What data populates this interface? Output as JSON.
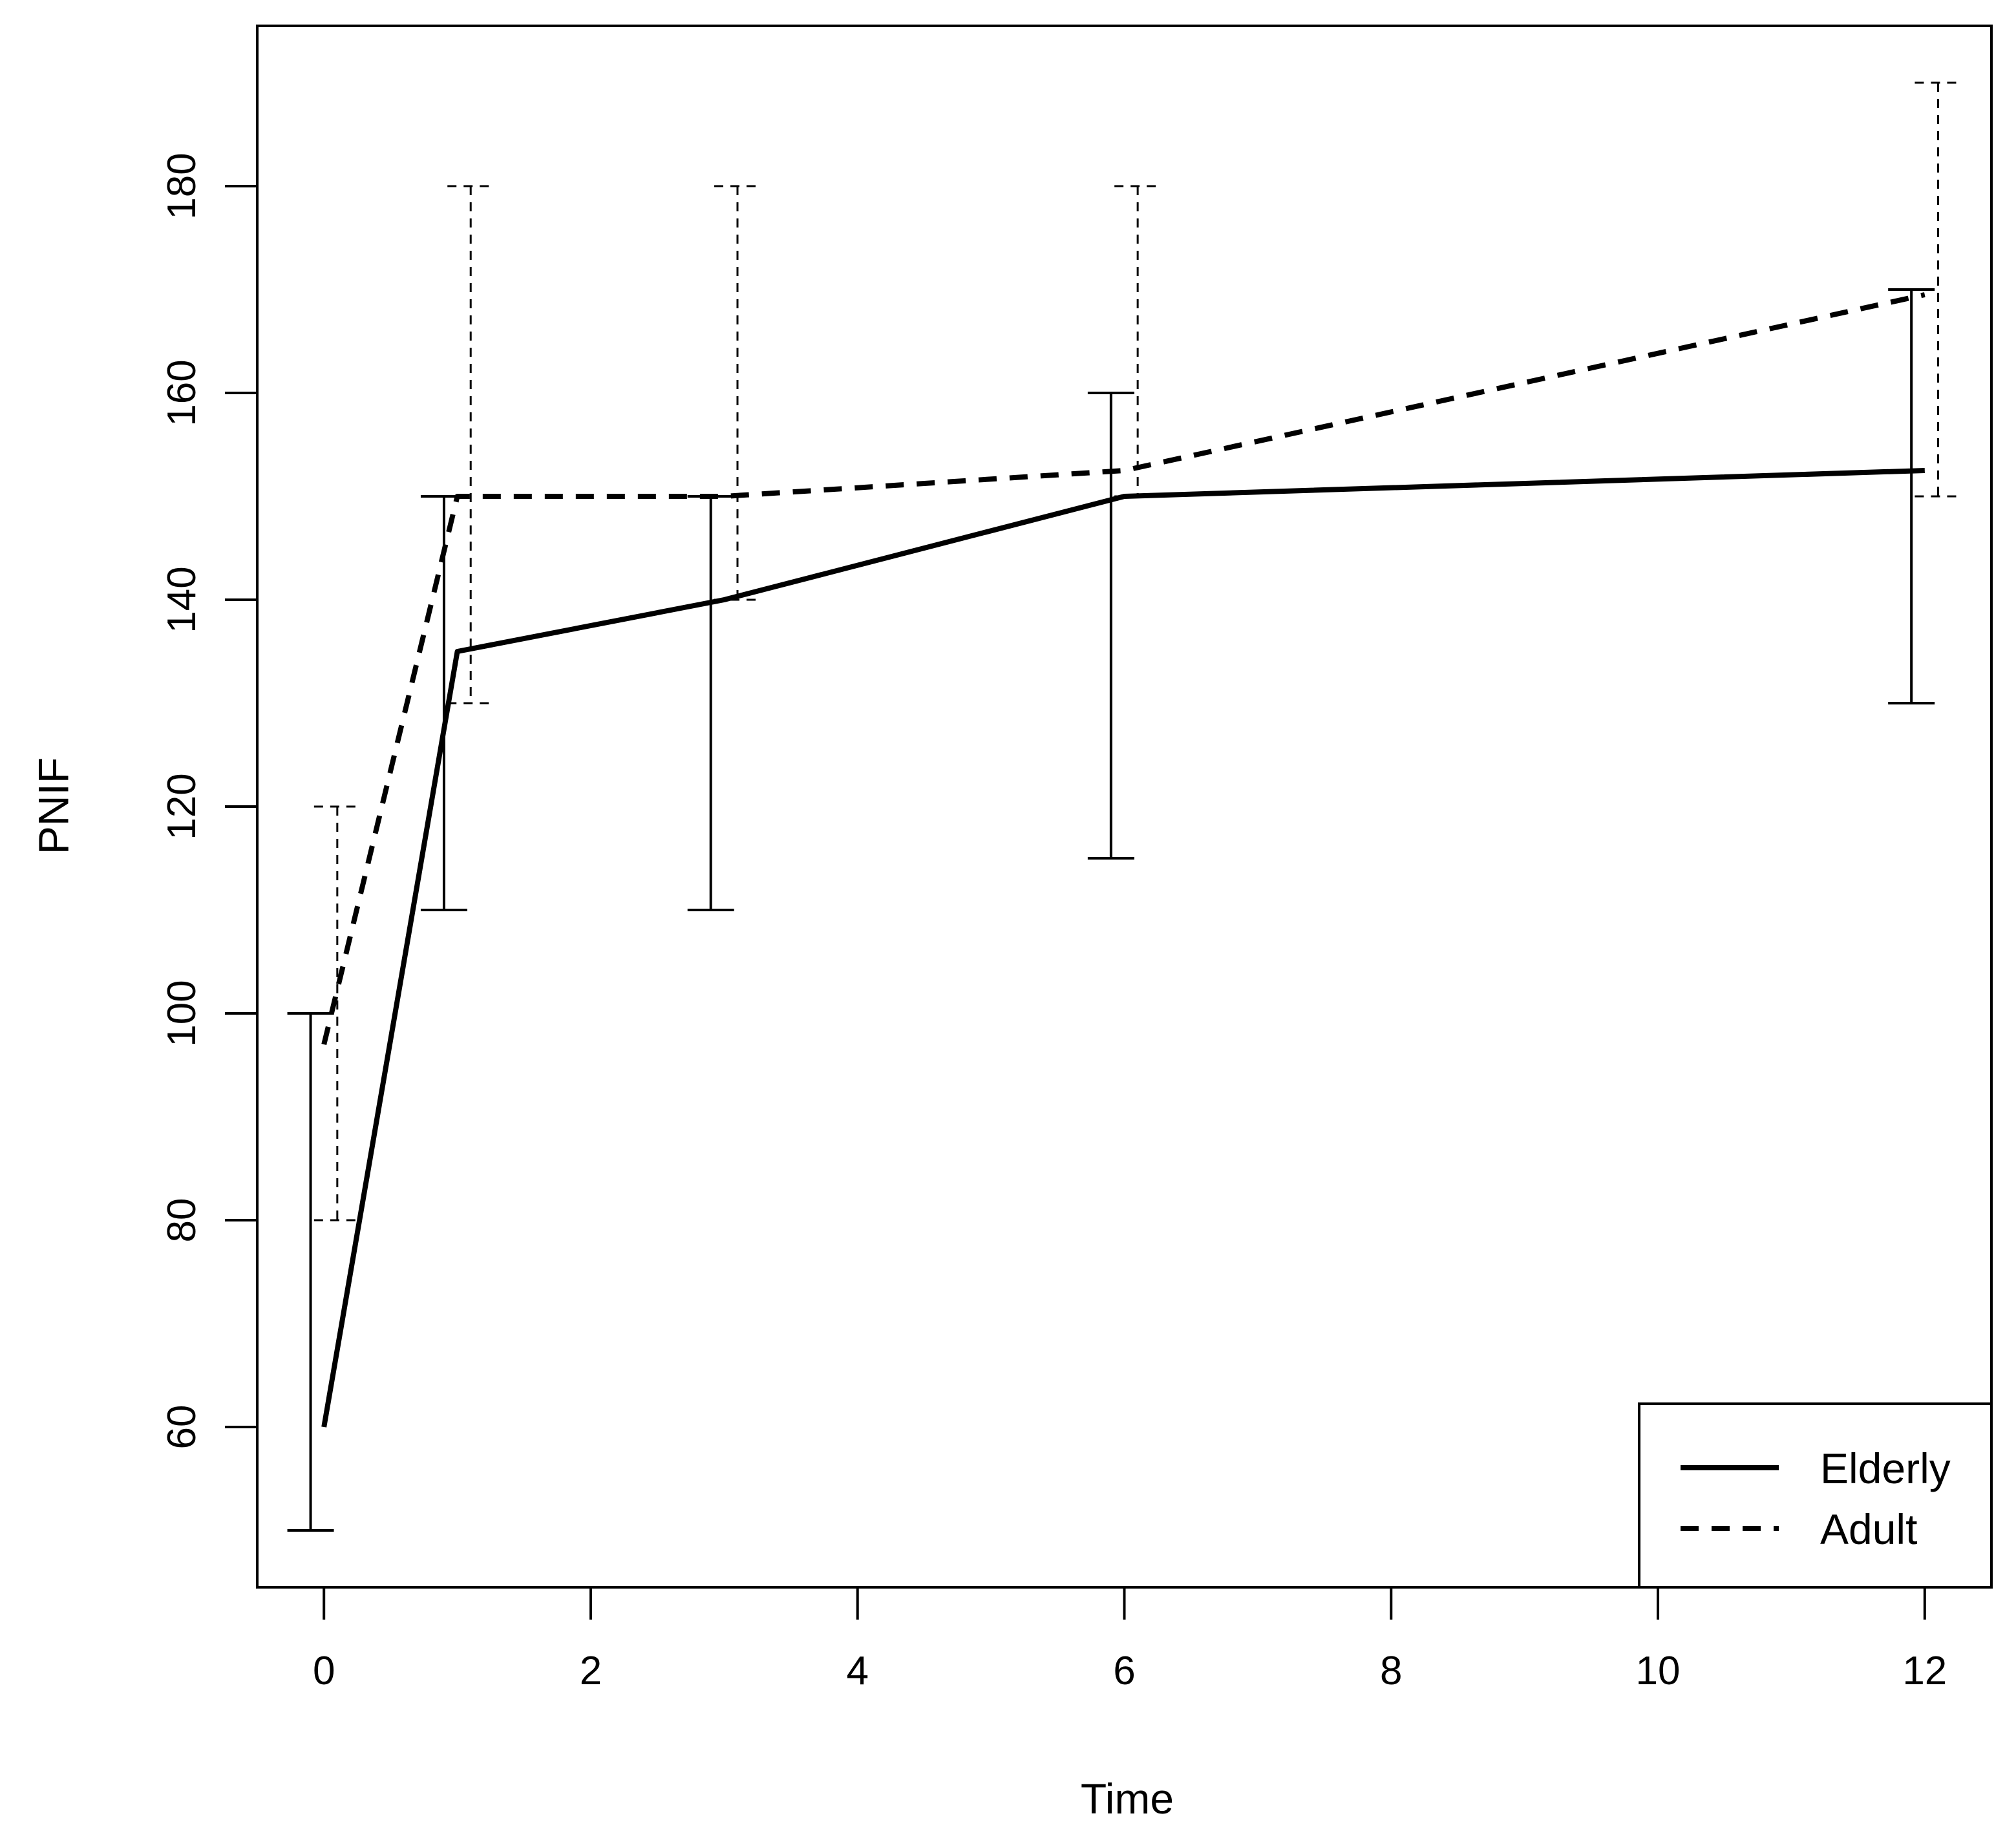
{
  "chart_data": {
    "type": "line",
    "title": "",
    "xlabel": "Time",
    "ylabel": "PNIF",
    "xlim": [
      -0.5,
      12.5
    ],
    "ylim": [
      44.5,
      195.5
    ],
    "xticks": [
      0,
      2,
      4,
      6,
      8,
      10,
      12
    ],
    "yticks": [
      60,
      80,
      100,
      120,
      140,
      160,
      180
    ],
    "grid": false,
    "legend_position": "bottom-right",
    "series": [
      {
        "name": "Elderly",
        "line_style": "solid",
        "color": "#000000",
        "x": [
          0,
          1,
          3,
          6,
          12
        ],
        "y": [
          60,
          135,
          140,
          150,
          152.5
        ],
        "error_low": [
          50,
          110,
          110,
          115,
          130
        ],
        "error_high": [
          100,
          150,
          150,
          160,
          170
        ]
      },
      {
        "name": "Adult",
        "line_style": "dashed",
        "color": "#000000",
        "x": [
          0,
          1,
          3,
          6,
          12
        ],
        "y": [
          97,
          150,
          150,
          152.5,
          169.5
        ],
        "error_low": [
          80,
          130,
          140,
          150,
          150
        ],
        "error_high": [
          120,
          180,
          180,
          180,
          190
        ]
      }
    ]
  }
}
